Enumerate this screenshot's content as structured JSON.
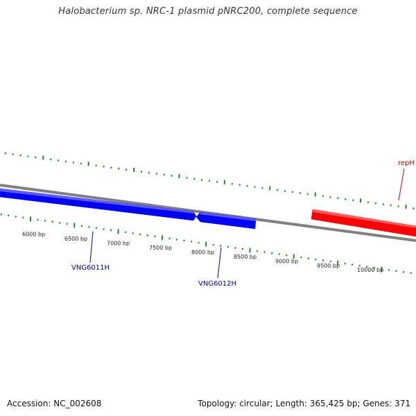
{
  "title": "Halobacterium sp. NRC-1 plasmid pNRC200, complete sequence",
  "footer": {
    "accession": "Accession: NC_002608",
    "summary": "Topology: circular; Length: 365,425 bp; Genes: 371"
  },
  "colors": {
    "backbone": "#808080",
    "forward_gene": "#ff0000",
    "reverse_gene": "#0000ff",
    "tick": "#228b22",
    "reverse_label": "#0000aa",
    "forward_label": "#cc0000"
  },
  "scale": {
    "labels": [
      "6000 bp",
      "6500 bp",
      "7000 bp",
      "7500 bp",
      "8000 bp",
      "8500 bp",
      "9000 bp",
      "9500 bp",
      "10000 bp"
    ]
  },
  "genes": [
    {
      "name": "VNG6011H",
      "strand": "reverse"
    },
    {
      "name": "VNG6012H",
      "strand": "reverse"
    },
    {
      "name": "repH",
      "strand": "forward"
    }
  ]
}
